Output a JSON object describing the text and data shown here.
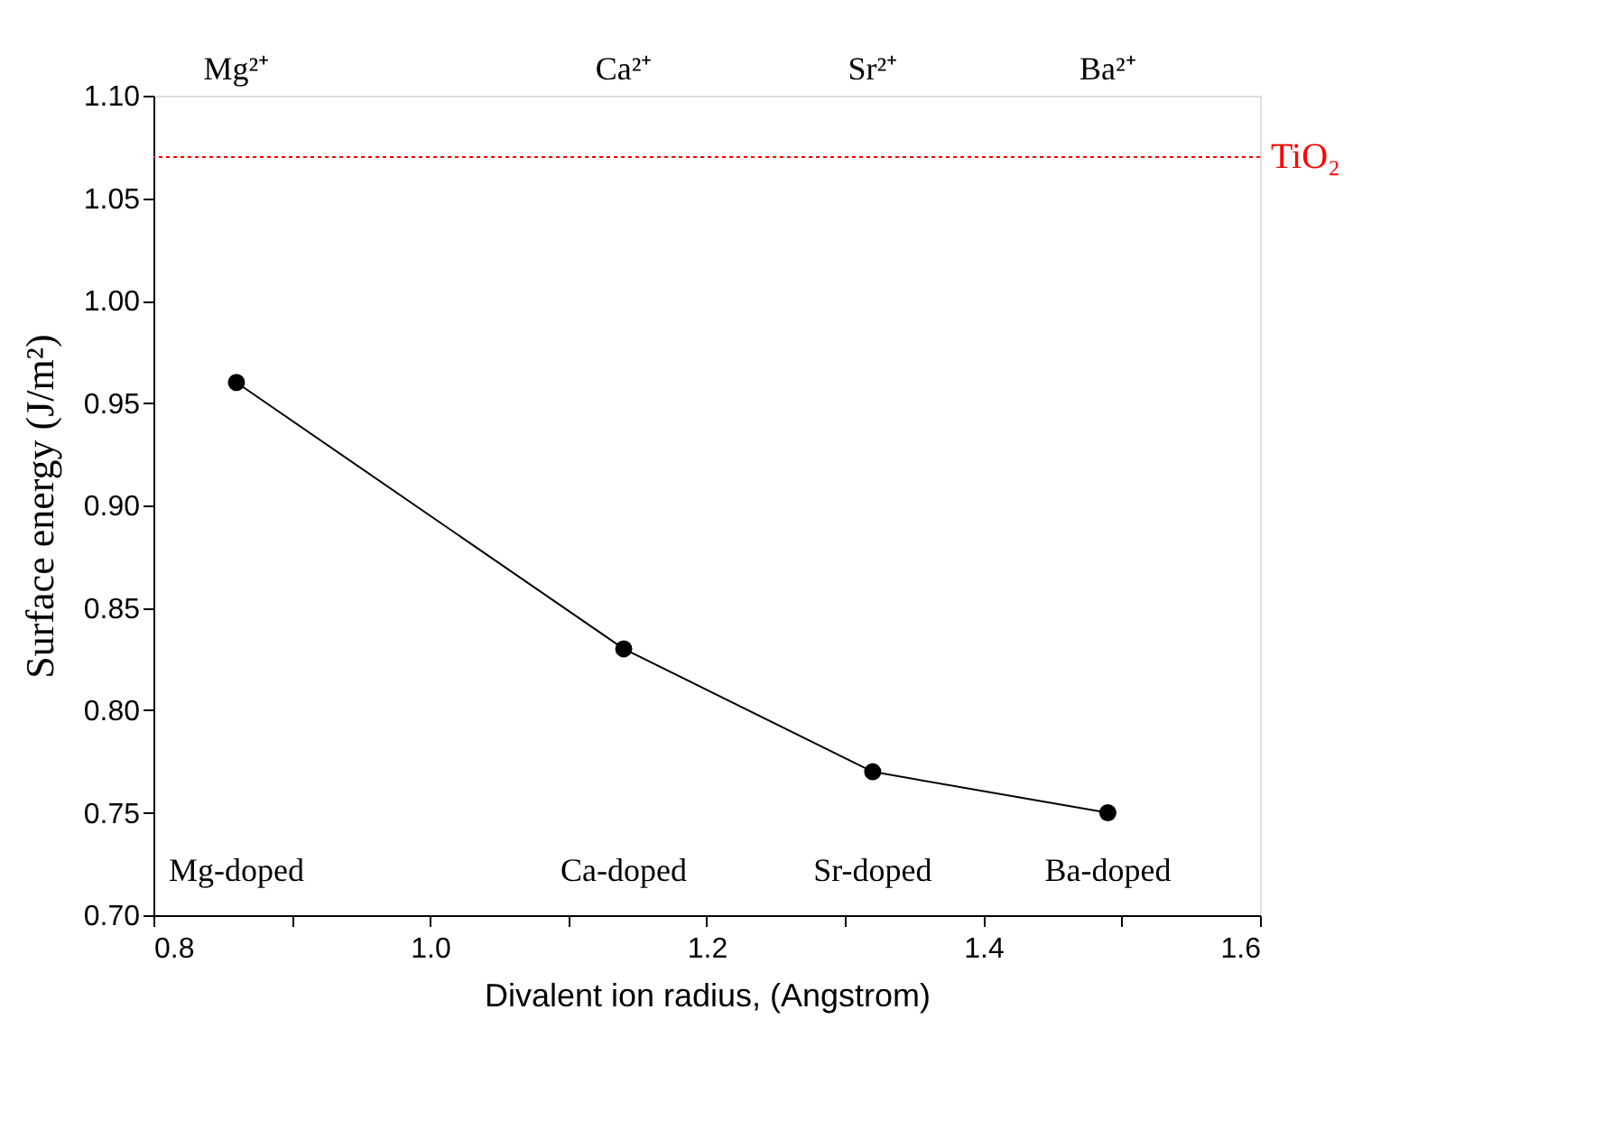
{
  "chart_data": {
    "type": "line",
    "xlabel": "Divalent ion radius, (Angstrom)",
    "ylabel": "Surface energy (J/m²)",
    "x": [
      0.86,
      1.14,
      1.32,
      1.49
    ],
    "series": [
      {
        "color": "#000000",
        "values": [
          0.96,
          0.83,
          0.77,
          0.75
        ]
      }
    ],
    "marker": "circle",
    "line_style": "solid",
    "xlim": [
      0.8,
      1.6
    ],
    "xticks": [
      {
        "value": 0.8,
        "label": "0.8"
      },
      {
        "value": 0.9,
        "label": null
      },
      {
        "value": 1.0,
        "label": "1.0"
      },
      {
        "value": 1.1,
        "label": null
      },
      {
        "value": 1.2,
        "label": "1.2"
      },
      {
        "value": 1.3,
        "label": null
      },
      {
        "value": 1.4,
        "label": "1.4"
      },
      {
        "value": 1.5,
        "label": null
      },
      {
        "value": 1.6,
        "label": "1.6"
      }
    ],
    "ylim": [
      0.7,
      1.1
    ],
    "yticks": [
      {
        "value": 0.7,
        "label": "0.70"
      },
      {
        "value": 0.75,
        "label": "0.75"
      },
      {
        "value": 0.8,
        "label": "0.80"
      },
      {
        "value": 0.85,
        "label": "0.85"
      },
      {
        "value": 0.9,
        "label": "0.90"
      },
      {
        "value": 0.95,
        "label": "0.95"
      },
      {
        "value": 1.0,
        "label": "1.00"
      },
      {
        "value": 1.05,
        "label": "1.05"
      },
      {
        "value": 1.1,
        "label": "1.10"
      }
    ],
    "ref_lines": [
      {
        "axis": "y",
        "value": 1.07,
        "label": "TiO₂",
        "color": "#ff0000",
        "line_style": "dotted"
      }
    ],
    "annotations": [
      "Mg²⁺",
      "Ca²⁺",
      "Sr²⁺",
      "Ba²⁺",
      "Mg-doped",
      "Ca-doped",
      "Sr-doped",
      "Ba-doped"
    ],
    "grid": false
  }
}
